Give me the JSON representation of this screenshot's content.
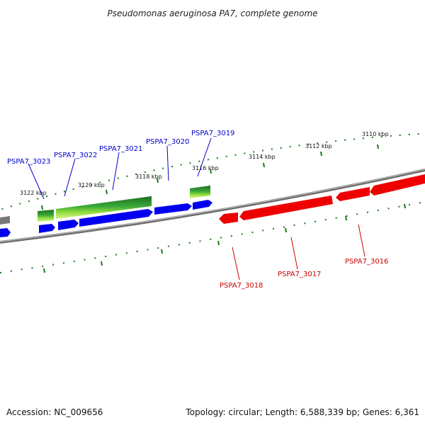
{
  "title": "Pseudomonas aeruginosa PA7, complete genome",
  "footer": {
    "accession": "Accession: NC_009656",
    "summary": "Topology: circular; Length: 6,588,339 bp; Genes: 6,361"
  },
  "scale_labels": [
    "3122 kbp",
    "3120 kbp",
    "3118 kbp",
    "3116 kbp",
    "3114 kbp",
    "3112 kbp",
    "3110 kbp"
  ],
  "forward_genes": [
    "PSPA7_3023",
    "PSPA7_3022",
    "PSPA7_3021",
    "PSPA7_3020",
    "PSPA7_3019"
  ],
  "reverse_genes": [
    "PSPA7_3018",
    "PSPA7_3017",
    "PSPA7_3016"
  ],
  "colors": {
    "forward_gene": "#0000ee",
    "reverse_gene": "#ee0000",
    "backbone": "#888888",
    "tick": "#1a7a1a",
    "forward_label": "#0000cc",
    "reverse_label": "#cc0000"
  }
}
